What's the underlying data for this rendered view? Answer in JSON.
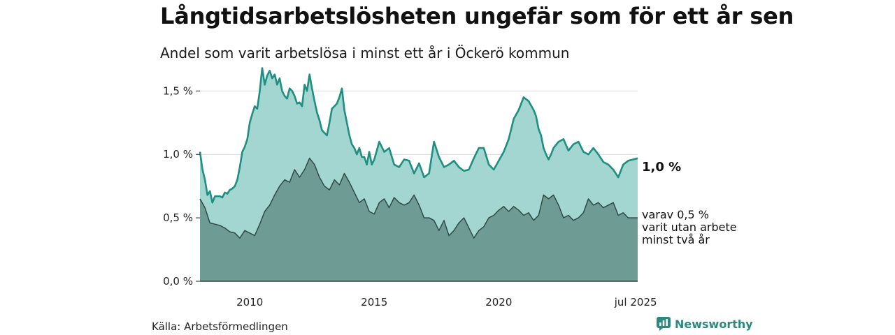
{
  "title": "Långtidsarbetslösheten ungefär som för ett år sen",
  "subtitle": "Andel som varit arbetslösa i minst ett år i Öckerö kommun",
  "source": "Källa: Arbetsförmedlingen",
  "brand": {
    "name": "Newsworthy",
    "icon": "newsworthy-logo-icon"
  },
  "annotations": {
    "total": "1,0 %",
    "sub_line1": "varav 0,5 %",
    "sub_line2": "varit utan arbete",
    "sub_line3": "minst två år"
  },
  "colors": {
    "total_fill": "#a3d6d0",
    "total_line": "#1e8f80",
    "sub_fill": "#6e9c95",
    "sub_line": "#2f4a45",
    "grid": "#d9d9d9"
  },
  "chart_data": {
    "type": "area",
    "xlim": [
      2008.0,
      2025.58
    ],
    "ylim": [
      0,
      1.7
    ],
    "y_ticks": [
      {
        "value": 0,
        "label": "0,0 %"
      },
      {
        "value": 0.5,
        "label": "0,5 %"
      },
      {
        "value": 1.0,
        "label": "1,0 %"
      },
      {
        "value": 1.5,
        "label": "1,5 %"
      }
    ],
    "x_ticks": [
      {
        "value": 2010,
        "label": "2010"
      },
      {
        "value": 2015,
        "label": "2015"
      },
      {
        "value": 2020,
        "label": "2020"
      },
      {
        "value": 2025.5,
        "label": "jul 2025"
      }
    ],
    "grid": true,
    "series": [
      {
        "x": [
          2008.0,
          2008.1,
          2008.2,
          2008.3,
          2008.4,
          2008.5,
          2008.6,
          2008.7,
          2008.8,
          2008.9,
          2009.0,
          2009.1,
          2009.2,
          2009.3,
          2009.4,
          2009.5,
          2009.6,
          2009.7,
          2009.8,
          2009.9,
          2010.0,
          2010.1,
          2010.2,
          2010.3,
          2010.4,
          2010.5,
          2010.6,
          2010.7,
          2010.8,
          2010.9,
          2011.0,
          2011.1,
          2011.2,
          2011.3,
          2011.4,
          2011.5,
          2011.6,
          2011.7,
          2011.8,
          2011.9,
          2012.0,
          2012.1,
          2012.2,
          2012.3,
          2012.4,
          2012.5,
          2012.6,
          2012.7,
          2012.8,
          2012.9,
          2013.0,
          2013.1,
          2013.2,
          2013.3,
          2013.4,
          2013.5,
          2013.6,
          2013.7,
          2013.8,
          2013.9,
          2014.0,
          2014.1,
          2014.2,
          2014.3,
          2014.4,
          2014.5,
          2014.6,
          2014.7,
          2014.8,
          2014.9,
          2015.0,
          2015.2,
          2015.4,
          2015.6,
          2015.8,
          2016.0,
          2016.2,
          2016.4,
          2016.6,
          2016.8,
          2017.0,
          2017.2,
          2017.4,
          2017.6,
          2017.8,
          2018.0,
          2018.2,
          2018.4,
          2018.6,
          2018.8,
          2019.0,
          2019.2,
          2019.4,
          2019.6,
          2019.8,
          2020.0,
          2020.2,
          2020.4,
          2020.6,
          2020.8,
          2021.0,
          2021.2,
          2021.4,
          2021.5,
          2021.6,
          2021.7,
          2021.8,
          2021.9,
          2022.0,
          2022.1,
          2022.2,
          2022.4,
          2022.6,
          2022.8,
          2023.0,
          2023.2,
          2023.4,
          2023.6,
          2023.8,
          2024.0,
          2024.2,
          2024.4,
          2024.6,
          2024.8,
          2025.0,
          2025.2,
          2025.4,
          2025.58
        ],
        "values": [
          1.02,
          0.88,
          0.8,
          0.68,
          0.71,
          0.62,
          0.67,
          0.67,
          0.67,
          0.66,
          0.7,
          0.69,
          0.72,
          0.73,
          0.75,
          0.8,
          0.9,
          1.02,
          1.06,
          1.12,
          1.25,
          1.32,
          1.38,
          1.36,
          1.5,
          1.68,
          1.55,
          1.62,
          1.66,
          1.6,
          1.63,
          1.55,
          1.6,
          1.5,
          1.46,
          1.44,
          1.52,
          1.5,
          1.46,
          1.4,
          1.41,
          1.38,
          1.55,
          1.5,
          1.63,
          1.52,
          1.42,
          1.33,
          1.27,
          1.19,
          1.17,
          1.15,
          1.25,
          1.36,
          1.38,
          1.4,
          1.45,
          1.52,
          1.35,
          1.25,
          1.15,
          1.08,
          1.05,
          1.0,
          1.05,
          0.98,
          0.98,
          0.92,
          1.02,
          0.92,
          0.96,
          1.1,
          1.02,
          1.05,
          0.92,
          0.9,
          0.96,
          0.95,
          0.85,
          0.93,
          0.82,
          0.85,
          1.1,
          0.98,
          0.9,
          0.92,
          0.95,
          0.9,
          0.87,
          0.88,
          0.97,
          1.05,
          1.05,
          0.92,
          0.88,
          0.95,
          1.02,
          1.12,
          1.28,
          1.35,
          1.45,
          1.42,
          1.35,
          1.3,
          1.2,
          1.15,
          1.05,
          1.0,
          0.96,
          1.0,
          1.05,
          1.1,
          1.12,
          1.03,
          1.08,
          1.1,
          1.02,
          1.0,
          1.05,
          1.0,
          0.94,
          0.92,
          0.88,
          0.82,
          0.92,
          0.95,
          0.96,
          0.97
        ]
      },
      {
        "x": [
          2008.0,
          2008.2,
          2008.4,
          2008.6,
          2008.8,
          2009.0,
          2009.2,
          2009.4,
          2009.6,
          2009.8,
          2010.0,
          2010.2,
          2010.4,
          2010.6,
          2010.8,
          2011.0,
          2011.2,
          2011.4,
          2011.6,
          2011.8,
          2012.0,
          2012.2,
          2012.4,
          2012.6,
          2012.8,
          2013.0,
          2013.2,
          2013.4,
          2013.6,
          2013.8,
          2014.0,
          2014.2,
          2014.4,
          2014.6,
          2014.8,
          2015.0,
          2015.2,
          2015.4,
          2015.6,
          2015.8,
          2016.0,
          2016.2,
          2016.4,
          2016.6,
          2016.8,
          2017.0,
          2017.2,
          2017.4,
          2017.6,
          2017.8,
          2018.0,
          2018.2,
          2018.4,
          2018.6,
          2018.8,
          2019.0,
          2019.2,
          2019.4,
          2019.6,
          2019.8,
          2020.0,
          2020.2,
          2020.4,
          2020.6,
          2020.8,
          2021.0,
          2021.2,
          2021.4,
          2021.6,
          2021.8,
          2022.0,
          2022.2,
          2022.4,
          2022.6,
          2022.8,
          2023.0,
          2023.2,
          2023.4,
          2023.6,
          2023.8,
          2024.0,
          2024.2,
          2024.4,
          2024.6,
          2024.8,
          2025.0,
          2025.2,
          2025.4,
          2025.58
        ],
        "values": [
          0.65,
          0.58,
          0.46,
          0.45,
          0.44,
          0.42,
          0.39,
          0.38,
          0.34,
          0.4,
          0.38,
          0.36,
          0.45,
          0.55,
          0.6,
          0.68,
          0.75,
          0.8,
          0.78,
          0.88,
          0.82,
          0.88,
          0.97,
          0.92,
          0.82,
          0.75,
          0.72,
          0.8,
          0.76,
          0.85,
          0.78,
          0.7,
          0.62,
          0.65,
          0.55,
          0.53,
          0.62,
          0.65,
          0.58,
          0.66,
          0.62,
          0.6,
          0.62,
          0.68,
          0.6,
          0.5,
          0.5,
          0.48,
          0.4,
          0.48,
          0.36,
          0.4,
          0.46,
          0.5,
          0.42,
          0.34,
          0.4,
          0.43,
          0.5,
          0.52,
          0.56,
          0.59,
          0.55,
          0.59,
          0.56,
          0.52,
          0.54,
          0.48,
          0.52,
          0.68,
          0.65,
          0.68,
          0.6,
          0.5,
          0.52,
          0.48,
          0.5,
          0.54,
          0.65,
          0.6,
          0.62,
          0.58,
          0.6,
          0.62,
          0.52,
          0.54,
          0.5,
          0.5,
          0.5
        ]
      }
    ]
  }
}
